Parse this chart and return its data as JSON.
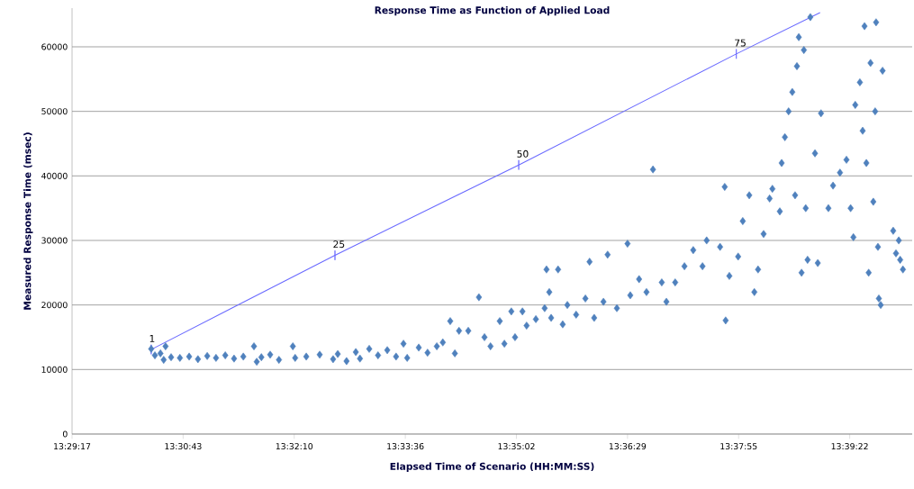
{
  "chart_data": {
    "type": "scatter",
    "title": "Response Time as Function of Applied Load",
    "xlabel": "Elapsed Time of Scenario (HH:MM:SS)",
    "ylabel": "Measured Response Time (msec)",
    "xlim": [
      13.488,
      13.6695
    ],
    "ylim": [
      0,
      66000
    ],
    "xticks": [
      {
        "value": 13.488,
        "label": "13:29:17"
      },
      {
        "value": 13.512,
        "label": "13:30:43"
      },
      {
        "value": 13.536,
        "label": "13:32:10"
      },
      {
        "value": 13.56,
        "label": "13:33:36"
      },
      {
        "value": 13.584,
        "label": "13:35:02"
      },
      {
        "value": 13.608,
        "label": "13:36:29"
      },
      {
        "value": 13.632,
        "label": "13:37:55"
      },
      {
        "value": 13.656,
        "label": "13:39:22"
      }
    ],
    "yticks": [
      0,
      10000,
      20000,
      30000,
      40000,
      50000,
      60000
    ],
    "grid": "y",
    "marker": "diamond",
    "series": [
      {
        "color": "#4f81bd",
        "x": [
          13.5051,
          13.5059,
          13.5071,
          13.5082,
          13.5078,
          13.5094,
          13.5113,
          13.5133,
          13.5152,
          13.5172,
          13.5191,
          13.5211,
          13.523,
          13.525,
          13.5273,
          13.5279,
          13.5289,
          13.5308,
          13.5327,
          13.5357,
          13.5362,
          13.5386,
          13.5415,
          13.5444,
          13.5454,
          13.5473,
          13.5493,
          13.5502,
          13.5522,
          13.5541,
          13.5561,
          13.558,
          13.5596,
          13.5604,
          13.5629,
          13.5648,
          13.5668,
          13.5681,
          13.5697,
          13.5707,
          13.5716,
          13.5736,
          13.5759,
          13.5771,
          13.5784,
          13.5804,
          13.5814,
          13.5829,
          13.5837,
          13.5853,
          13.5862,
          13.5882,
          13.5901,
          13.5905,
          13.5911,
          13.5915,
          13.593,
          13.594,
          13.595,
          13.5969,
          13.5989,
          13.5998,
          13.6008,
          13.6037,
          13.6028,
          13.6057,
          13.608,
          13.6086,
          13.6105,
          13.6121,
          13.6135,
          13.6154,
          13.6164,
          13.6183,
          13.6203,
          13.6222,
          13.6242,
          13.6251,
          13.629,
          13.6292,
          13.628,
          13.63,
          13.6319,
          13.6329,
          13.6343,
          13.6354,
          13.6362,
          13.6374,
          13.6387,
          13.6393,
          13.6409,
          13.6413,
          13.642,
          13.6428,
          13.6436,
          13.6442,
          13.6446,
          13.645,
          13.6456,
          13.6461,
          13.6465,
          13.6475,
          13.6469,
          13.6485,
          13.6491,
          13.6498,
          13.6514,
          13.6524,
          13.6539,
          13.6553,
          13.6562,
          13.6568,
          13.6572,
          13.6582,
          13.6588,
          13.6592,
          13.6596,
          13.6601,
          13.6605,
          13.6611,
          13.6615,
          13.6621,
          13.6623,
          13.6627,
          13.6617,
          13.6631,
          13.6654,
          13.666,
          13.6666,
          13.6675,
          13.6669
        ],
        "values": [
          13200,
          12200,
          12500,
          13600,
          11500,
          11900,
          11800,
          12000,
          11600,
          12100,
          11800,
          12200,
          11700,
          12000,
          13600,
          11200,
          11900,
          12300,
          11500,
          13600,
          11800,
          12000,
          12300,
          11600,
          12400,
          11300,
          12700,
          11700,
          13200,
          12200,
          13000,
          12000,
          14000,
          11800,
          13400,
          12600,
          13600,
          14200,
          17500,
          12500,
          16000,
          16000,
          21200,
          15000,
          13600,
          17500,
          14000,
          19000,
          15000,
          19000,
          16800,
          17800,
          19500,
          25500,
          22000,
          18000,
          25500,
          17000,
          20000,
          18500,
          21000,
          26700,
          18000,
          27800,
          20500,
          19500,
          29500,
          21500,
          24000,
          22000,
          41000,
          23500,
          20500,
          23500,
          26000,
          28500,
          26000,
          30000,
          38300,
          17600,
          29000,
          24500,
          27500,
          33000,
          37000,
          22000,
          25500,
          31000,
          36500,
          38000,
          34500,
          42000,
          46000,
          50000,
          53000,
          37000,
          57000,
          61500,
          25000,
          59500,
          35000,
          64600,
          27000,
          43500,
          26500,
          49700,
          35000,
          38500,
          40500,
          42500,
          35000,
          30500,
          51000,
          54500,
          47000,
          63200,
          42000,
          25000,
          57500,
          36000,
          50000,
          29000,
          21000,
          20000,
          63800,
          56300,
          31500,
          28000,
          30000,
          25500,
          27000
        ]
      },
      {
        "type": "line",
        "color": "#6a6aff",
        "marker": "none",
        "x": [
          13.5051,
          13.5448,
          13.5845,
          13.6315,
          13.6496
        ],
        "values": [
          13100,
          27700,
          41700,
          58900,
          65300
        ]
      }
    ],
    "annotations": [
      {
        "text": "1",
        "x": 13.5051,
        "y": 13100
      },
      {
        "text": "25",
        "x": 13.5448,
        "y": 27700
      },
      {
        "text": "50",
        "x": 13.5845,
        "y": 41700
      },
      {
        "text": "75",
        "x": 13.6315,
        "y": 58900
      }
    ]
  }
}
